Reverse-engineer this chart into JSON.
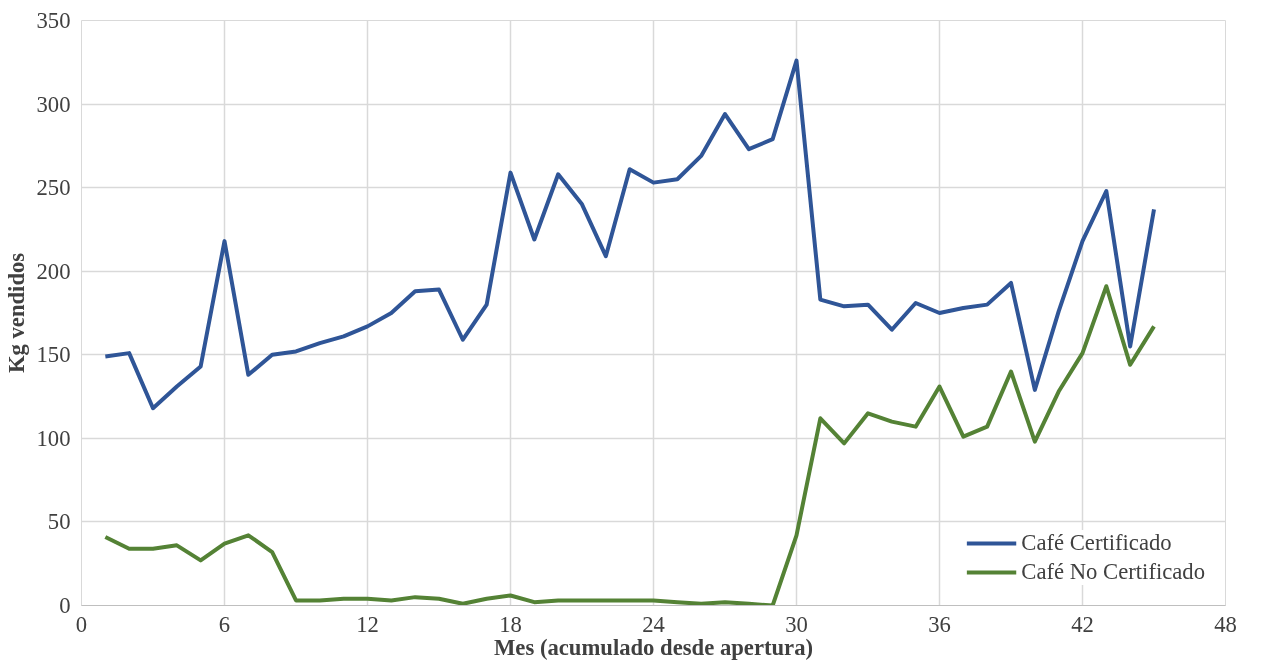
{
  "chart_data": {
    "type": "line",
    "xlabel": "Mes (acumulado desde apertura)",
    "ylabel": "Kg vendidos",
    "x": [
      1,
      2,
      3,
      4,
      5,
      6,
      7,
      8,
      9,
      10,
      11,
      12,
      13,
      14,
      15,
      16,
      17,
      18,
      19,
      20,
      21,
      22,
      23,
      24,
      25,
      26,
      27,
      28,
      29,
      30,
      31,
      32,
      33,
      34,
      35,
      36,
      37,
      38,
      39,
      40,
      41,
      42,
      43,
      44,
      45
    ],
    "series": [
      {
        "name": "Café Certificado",
        "color": "#2f5597",
        "values": [
          149,
          151,
          118,
          131,
          143,
          218,
          138,
          150,
          152,
          157,
          161,
          167,
          175,
          188,
          189,
          159,
          180,
          259,
          219,
          258,
          240,
          209,
          261,
          253,
          255,
          269,
          294,
          273,
          279,
          326,
          183,
          179,
          180,
          165,
          181,
          175,
          178,
          180,
          193,
          129,
          176,
          218,
          248,
          155,
          237
        ]
      },
      {
        "name": "Café No Certificado",
        "color": "#548235",
        "values": [
          41,
          34,
          34,
          36,
          27,
          37,
          42,
          32,
          3,
          3,
          4,
          4,
          3,
          5,
          4,
          1,
          4,
          6,
          2,
          3,
          3,
          3,
          3,
          3,
          2,
          1,
          2,
          1,
          0,
          42,
          112,
          97,
          115,
          110,
          107,
          131,
          101,
          107,
          140,
          98,
          128,
          151,
          191,
          144,
          167
        ]
      }
    ],
    "xlim": [
      0,
      48
    ],
    "xticks": [
      0,
      6,
      12,
      18,
      24,
      30,
      36,
      42,
      48
    ],
    "ylim": [
      0,
      350
    ],
    "yticks": [
      0,
      50,
      100,
      150,
      200,
      250,
      300,
      350
    ],
    "grid": true,
    "legend": "bottom right",
    "marker": "none",
    "line_style": "solid"
  }
}
